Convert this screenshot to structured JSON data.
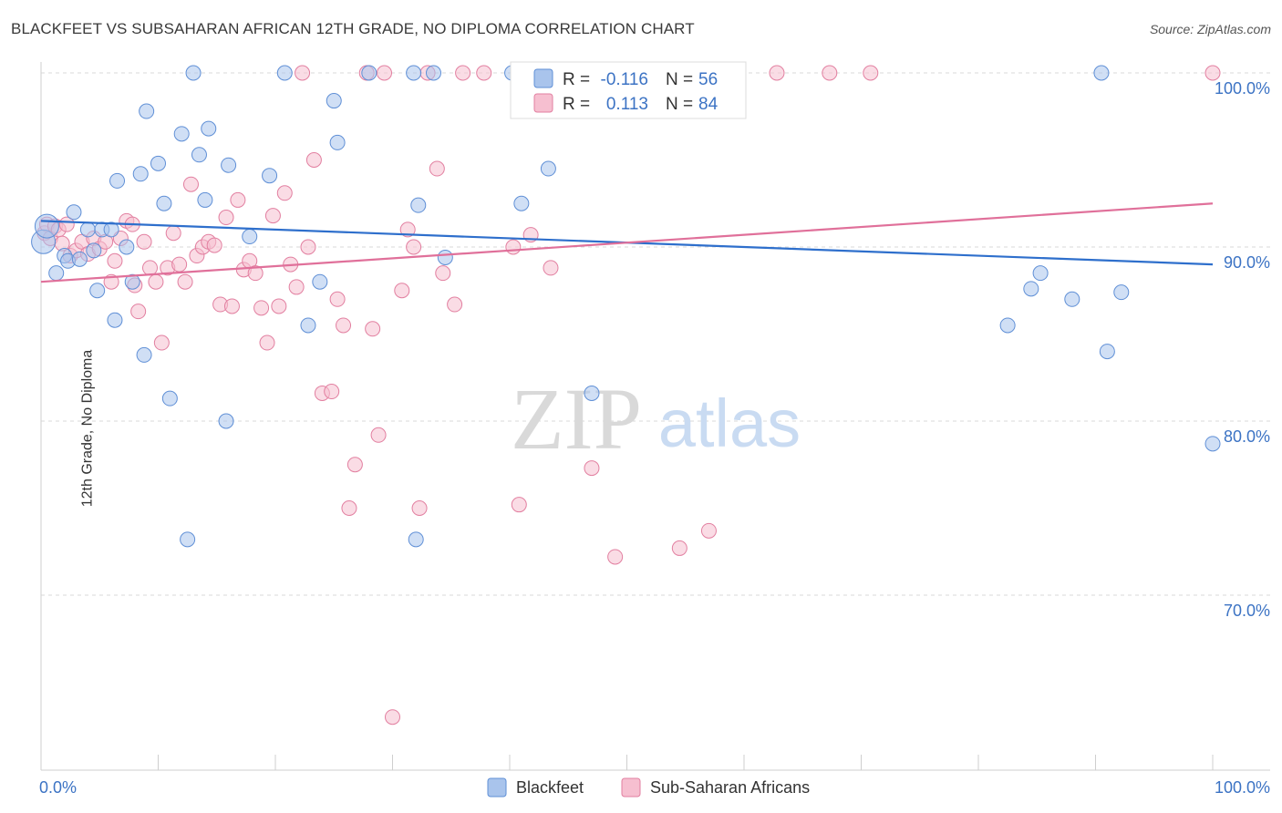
{
  "title": "BLACKFEET VS SUBSAHARAN AFRICAN 12TH GRADE, NO DIPLOMA CORRELATION CHART",
  "source": "Source: ZipAtlas.com",
  "watermark": {
    "zip": "ZIP",
    "atlas": "atlas"
  },
  "colors": {
    "blue_fill": "#a9c4ec",
    "blue_stroke": "#5f8fd6",
    "blue_line": "#2e6fcc",
    "pink_fill": "#f6bfd0",
    "pink_stroke": "#e27fa0",
    "pink_line": "#e0709a",
    "axis_label": "#3c73c4",
    "grid": "#d9d9d9"
  },
  "legend": {
    "rows": [
      {
        "r_label": "R = ",
        "r_value": "-0.116",
        "n_label": "N = ",
        "n_value": "56",
        "color": "blue"
      },
      {
        "r_label": "R = ",
        "r_value": "0.113",
        "n_label": "N = ",
        "n_value": "84",
        "color": "pink"
      }
    ]
  },
  "bottom_legend": [
    "Blackfeet",
    "Sub-Saharan Africans"
  ],
  "chart_data": {
    "type": "scatter",
    "xlabel": "",
    "ylabel": "12th Grade, No Diploma",
    "x_tick_labels": [
      "0.0%",
      "100.0%"
    ],
    "y_tick_labels": [
      "100.0%",
      "90.0%",
      "80.0%",
      "70.0%"
    ],
    "y_ticks": [
      100,
      90,
      80,
      70
    ],
    "xlim": [
      0,
      100
    ],
    "ylim": [
      60,
      101
    ],
    "grid": true,
    "legend_position": "top-center",
    "series": [
      {
        "name": "Blackfeet",
        "color": "blue",
        "r": -0.116,
        "n": 56,
        "trend": [
          [
            0,
            91.5
          ],
          [
            100,
            89
          ]
        ],
        "points": [
          [
            0.2,
            90.3
          ],
          [
            0.5,
            91.2
          ],
          [
            1.3,
            88.5
          ],
          [
            2.0,
            89.5
          ],
          [
            2.3,
            89.2
          ],
          [
            2.8,
            92.0
          ],
          [
            3.3,
            89.3
          ],
          [
            4.0,
            91.0
          ],
          [
            4.5,
            89.8
          ],
          [
            4.8,
            87.5
          ],
          [
            5.2,
            91.0
          ],
          [
            6.0,
            91.0
          ],
          [
            6.3,
            85.8
          ],
          [
            6.5,
            93.8
          ],
          [
            7.3,
            90.0
          ],
          [
            7.8,
            88.0
          ],
          [
            8.5,
            94.2
          ],
          [
            8.8,
            83.8
          ],
          [
            9.0,
            97.8
          ],
          [
            10.0,
            94.8
          ],
          [
            10.5,
            92.5
          ],
          [
            11.0,
            81.3
          ],
          [
            12.0,
            96.5
          ],
          [
            12.5,
            73.2
          ],
          [
            13.0,
            100.0
          ],
          [
            13.5,
            95.3
          ],
          [
            14.0,
            92.7
          ],
          [
            14.3,
            96.8
          ],
          [
            15.8,
            80.0
          ],
          [
            16.0,
            94.7
          ],
          [
            17.8,
            90.6
          ],
          [
            19.5,
            94.1
          ],
          [
            20.8,
            100.0
          ],
          [
            22.8,
            85.5
          ],
          [
            23.8,
            88.0
          ],
          [
            25.0,
            98.4
          ],
          [
            25.3,
            96.0
          ],
          [
            28.0,
            100.0
          ],
          [
            31.8,
            100.0
          ],
          [
            32.0,
            73.2
          ],
          [
            32.2,
            92.4
          ],
          [
            33.5,
            100.0
          ],
          [
            34.5,
            89.4
          ],
          [
            40.2,
            100.0
          ],
          [
            41.0,
            92.5
          ],
          [
            43.3,
            94.5
          ],
          [
            47.0,
            81.6
          ],
          [
            50.5,
            100.0
          ],
          [
            82.5,
            85.5
          ],
          [
            84.5,
            87.6
          ],
          [
            85.3,
            88.5
          ],
          [
            88.0,
            87.0
          ],
          [
            90.5,
            100.0
          ],
          [
            91.0,
            84.0
          ],
          [
            92.2,
            87.4
          ],
          [
            100.0,
            78.7
          ]
        ]
      },
      {
        "name": "Sub-Saharan Africans",
        "color": "pink",
        "r": 0.113,
        "n": 84,
        "trend": [
          [
            0,
            88
          ],
          [
            100,
            92.5
          ]
        ],
        "points": [
          [
            0.3,
            90.8
          ],
          [
            0.5,
            91.3
          ],
          [
            0.8,
            90.5
          ],
          [
            1.2,
            91.2
          ],
          [
            1.5,
            91.0
          ],
          [
            1.8,
            90.2
          ],
          [
            2.2,
            91.3
          ],
          [
            2.5,
            89.5
          ],
          [
            3.0,
            89.8
          ],
          [
            3.5,
            90.3
          ],
          [
            4.0,
            89.6
          ],
          [
            4.5,
            90.5
          ],
          [
            5.0,
            89.9
          ],
          [
            5.5,
            90.3
          ],
          [
            6.0,
            88.0
          ],
          [
            6.3,
            89.2
          ],
          [
            6.8,
            90.5
          ],
          [
            7.3,
            91.5
          ],
          [
            7.8,
            91.3
          ],
          [
            8.0,
            87.8
          ],
          [
            8.3,
            86.3
          ],
          [
            8.8,
            90.3
          ],
          [
            9.3,
            88.8
          ],
          [
            9.8,
            88.0
          ],
          [
            10.3,
            84.5
          ],
          [
            10.8,
            88.8
          ],
          [
            11.3,
            90.8
          ],
          [
            11.8,
            89.0
          ],
          [
            12.3,
            88.0
          ],
          [
            12.8,
            93.6
          ],
          [
            13.3,
            89.5
          ],
          [
            13.8,
            90.0
          ],
          [
            14.3,
            90.3
          ],
          [
            14.8,
            90.1
          ],
          [
            15.3,
            86.7
          ],
          [
            15.8,
            91.7
          ],
          [
            16.3,
            86.6
          ],
          [
            16.8,
            92.7
          ],
          [
            17.3,
            88.7
          ],
          [
            17.8,
            89.2
          ],
          [
            18.3,
            88.5
          ],
          [
            18.8,
            86.5
          ],
          [
            19.3,
            84.5
          ],
          [
            19.8,
            91.8
          ],
          [
            20.3,
            86.6
          ],
          [
            20.8,
            93.1
          ],
          [
            21.3,
            89.0
          ],
          [
            21.8,
            87.7
          ],
          [
            22.3,
            100.0
          ],
          [
            22.8,
            90.0
          ],
          [
            23.3,
            95.0
          ],
          [
            24.0,
            81.6
          ],
          [
            24.8,
            81.7
          ],
          [
            25.3,
            87.0
          ],
          [
            25.8,
            85.5
          ],
          [
            26.3,
            75.0
          ],
          [
            26.8,
            77.5
          ],
          [
            27.8,
            100.0
          ],
          [
            28.3,
            85.3
          ],
          [
            28.8,
            79.2
          ],
          [
            29.3,
            100.0
          ],
          [
            30.0,
            63.0
          ],
          [
            30.8,
            87.5
          ],
          [
            31.3,
            91.0
          ],
          [
            31.8,
            90.0
          ],
          [
            32.3,
            75.0
          ],
          [
            33.0,
            100.0
          ],
          [
            33.8,
            94.5
          ],
          [
            34.3,
            88.5
          ],
          [
            35.3,
            86.7
          ],
          [
            36.0,
            100.0
          ],
          [
            37.8,
            100.0
          ],
          [
            40.3,
            90.0
          ],
          [
            40.8,
            75.2
          ],
          [
            41.8,
            90.7
          ],
          [
            43.5,
            88.8
          ],
          [
            47.0,
            77.3
          ],
          [
            49.0,
            72.2
          ],
          [
            54.5,
            72.7
          ],
          [
            57.0,
            73.7
          ],
          [
            62.8,
            100.0
          ],
          [
            67.3,
            100.0
          ],
          [
            70.8,
            100.0
          ],
          [
            100.0,
            100.0
          ]
        ]
      }
    ]
  }
}
